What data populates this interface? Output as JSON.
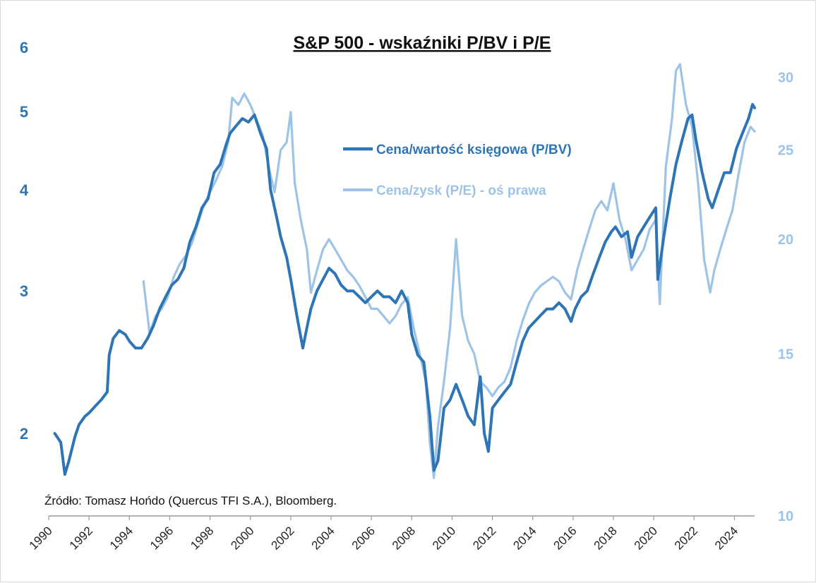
{
  "chart_data": {
    "type": "line",
    "title": "S&P 500 - wskaźniki P/BV i P/E",
    "source": "Źródło: Tomasz Hońdo (Quercus TFI S.A.), Bloomberg.",
    "x_ticks": [
      "1990",
      "1992",
      "1994",
      "1996",
      "1998",
      "2000",
      "2002",
      "2004",
      "2006",
      "2008",
      "2010",
      "2012",
      "2014",
      "2016",
      "2018",
      "2020",
      "2022",
      "2024"
    ],
    "y_left_ticks": [
      "2",
      "3",
      "4",
      "5",
      "6"
    ],
    "y_right_ticks": [
      "10",
      "15",
      "20",
      "25",
      "30"
    ],
    "x_range": [
      1990,
      2025
    ],
    "y_left_range": [
      1.7,
      6.0
    ],
    "y_left_scale": "log",
    "y_right_range": [
      10,
      31
    ],
    "y_right_scale": "log",
    "legend_placement": "top-center",
    "colors": {
      "pbv": "#2e75b6",
      "pe": "#9dc3e6"
    },
    "series": [
      {
        "name": "Cena/wartość księgowa (P/BV)",
        "axis": "left",
        "color": "#2e75b6",
        "x": [
          1990.3,
          1990.6,
          1990.8,
          1991.0,
          1991.3,
          1991.5,
          1991.8,
          1992.0,
          1992.3,
          1992.6,
          1992.9,
          1993.0,
          1993.2,
          1993.5,
          1993.8,
          1994.0,
          1994.3,
          1994.6,
          1994.9,
          1995.2,
          1995.5,
          1995.8,
          1996.1,
          1996.4,
          1996.7,
          1997.0,
          1997.3,
          1997.6,
          1997.9,
          1998.2,
          1998.5,
          1998.8,
          1999.0,
          1999.3,
          1999.6,
          1999.9,
          2000.2,
          2000.5,
          2000.8,
          2001.0,
          2001.3,
          2001.5,
          2001.8,
          2002.0,
          2002.3,
          2002.6,
          2002.8,
          2003.0,
          2003.3,
          2003.6,
          2003.9,
          2004.2,
          2004.5,
          2004.8,
          2005.1,
          2005.4,
          2005.7,
          2006.0,
          2006.3,
          2006.6,
          2006.9,
          2007.2,
          2007.5,
          2007.8,
          2008.0,
          2008.3,
          2008.6,
          2008.9,
          2009.1,
          2009.3,
          2009.6,
          2009.9,
          2010.2,
          2010.5,
          2010.8,
          2011.1,
          2011.4,
          2011.6,
          2011.8,
          2012.0,
          2012.3,
          2012.6,
          2012.9,
          2013.2,
          2013.5,
          2013.8,
          2014.1,
          2014.4,
          2014.7,
          2015.0,
          2015.3,
          2015.6,
          2015.9,
          2016.1,
          2016.4,
          2016.7,
          2017.0,
          2017.3,
          2017.6,
          2017.9,
          2018.1,
          2018.4,
          2018.7,
          2018.9,
          2019.2,
          2019.5,
          2019.8,
          2020.1,
          2020.2,
          2020.5,
          2020.8,
          2021.1,
          2021.4,
          2021.7,
          2021.9,
          2022.1,
          2022.4,
          2022.7,
          2022.9,
          2023.2,
          2023.5,
          2023.8,
          2024.1,
          2024.4,
          2024.7,
          2024.9,
          2025.0
        ],
        "values": [
          2.0,
          1.95,
          1.78,
          1.85,
          1.98,
          2.05,
          2.1,
          2.12,
          2.16,
          2.2,
          2.25,
          2.5,
          2.62,
          2.68,
          2.65,
          2.6,
          2.55,
          2.55,
          2.62,
          2.72,
          2.85,
          2.95,
          3.05,
          3.1,
          3.2,
          3.45,
          3.6,
          3.8,
          3.9,
          4.2,
          4.3,
          4.55,
          4.7,
          4.8,
          4.9,
          4.85,
          4.95,
          4.7,
          4.5,
          4.0,
          3.7,
          3.5,
          3.3,
          3.1,
          2.8,
          2.55,
          2.7,
          2.85,
          3.0,
          3.1,
          3.2,
          3.15,
          3.05,
          3.0,
          3.0,
          2.95,
          2.9,
          2.95,
          3.0,
          2.95,
          2.95,
          2.9,
          3.0,
          2.9,
          2.65,
          2.5,
          2.45,
          2.1,
          1.8,
          1.85,
          2.15,
          2.2,
          2.3,
          2.2,
          2.1,
          2.05,
          2.35,
          2.0,
          1.9,
          2.15,
          2.2,
          2.25,
          2.3,
          2.45,
          2.6,
          2.7,
          2.75,
          2.8,
          2.85,
          2.85,
          2.9,
          2.85,
          2.75,
          2.85,
          2.95,
          3.0,
          3.15,
          3.3,
          3.45,
          3.55,
          3.6,
          3.5,
          3.55,
          3.3,
          3.5,
          3.6,
          3.7,
          3.8,
          3.1,
          3.5,
          3.9,
          4.3,
          4.6,
          4.9,
          4.95,
          4.6,
          4.2,
          3.9,
          3.8,
          4.0,
          4.2,
          4.2,
          4.5,
          4.7,
          4.9,
          5.1,
          5.05
        ]
      },
      {
        "name": "Cena/zysk (P/E) - oś prawa",
        "axis": "right",
        "color": "#9dc3e6",
        "x": [
          1994.7,
          1995.0,
          1995.3,
          1995.6,
          1995.9,
          1996.2,
          1996.5,
          1996.8,
          1997.1,
          1997.4,
          1997.7,
          1998.0,
          1998.3,
          1998.6,
          1998.9,
          1999.1,
          1999.4,
          1999.7,
          2000.0,
          2000.3,
          2000.6,
          2000.9,
          2001.2,
          2001.5,
          2001.8,
          2002.0,
          2002.2,
          2002.5,
          2002.8,
          2003.0,
          2003.3,
          2003.6,
          2003.9,
          2004.2,
          2004.5,
          2004.8,
          2005.1,
          2005.4,
          2005.7,
          2006.0,
          2006.3,
          2006.6,
          2006.9,
          2007.2,
          2007.5,
          2007.8,
          2008.1,
          2008.4,
          2008.7,
          2008.9,
          2009.1,
          2009.3,
          2009.6,
          2009.9,
          2010.2,
          2010.5,
          2010.8,
          2011.1,
          2011.4,
          2011.7,
          2012.0,
          2012.3,
          2012.6,
          2012.9,
          2013.2,
          2013.5,
          2013.8,
          2014.1,
          2014.4,
          2014.7,
          2015.0,
          2015.3,
          2015.6,
          2015.9,
          2016.2,
          2016.5,
          2016.8,
          2017.1,
          2017.4,
          2017.7,
          2018.0,
          2018.3,
          2018.6,
          2018.9,
          2019.2,
          2019.5,
          2019.8,
          2020.1,
          2020.3,
          2020.6,
          2020.9,
          2021.1,
          2021.3,
          2021.6,
          2021.9,
          2022.2,
          2022.5,
          2022.8,
          2023.0,
          2023.3,
          2023.6,
          2023.9,
          2024.2,
          2024.5,
          2024.8,
          2025.0
        ],
        "values": [
          18.0,
          15.8,
          16.5,
          16.8,
          17.3,
          18.2,
          18.8,
          19.2,
          19.8,
          20.8,
          21.8,
          22.5,
          23.2,
          24.0,
          25.5,
          28.5,
          28.0,
          28.8,
          28.0,
          27.0,
          26.0,
          24.0,
          22.5,
          25.0,
          25.5,
          27.5,
          23.0,
          21.0,
          19.5,
          17.5,
          18.5,
          19.5,
          20.0,
          19.5,
          19.0,
          18.5,
          18.2,
          17.8,
          17.3,
          16.8,
          16.8,
          16.5,
          16.2,
          16.5,
          17.0,
          17.3,
          16.0,
          15.0,
          14.0,
          12.0,
          11.0,
          12.5,
          14.0,
          16.0,
          20.0,
          16.5,
          15.5,
          15.0,
          14.0,
          13.8,
          13.5,
          13.8,
          14.0,
          14.5,
          15.5,
          16.3,
          17.0,
          17.5,
          17.8,
          18.0,
          18.2,
          18.0,
          17.5,
          17.2,
          18.5,
          19.5,
          20.5,
          21.5,
          22.0,
          21.5,
          23.0,
          21.0,
          20.0,
          18.5,
          19.0,
          19.5,
          20.5,
          21.0,
          17.0,
          24.0,
          27.0,
          30.5,
          31.0,
          28.0,
          26.5,
          23.0,
          19.0,
          17.5,
          18.5,
          19.5,
          20.5,
          21.5,
          23.5,
          25.5,
          26.5,
          26.2
        ]
      }
    ]
  }
}
